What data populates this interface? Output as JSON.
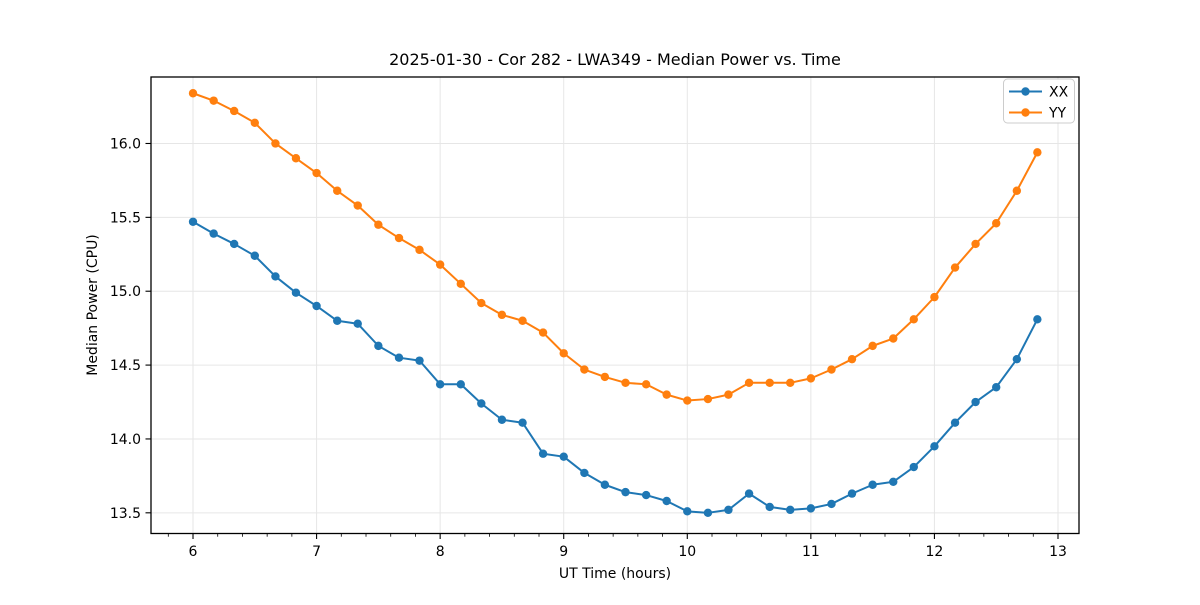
{
  "title": "2025-01-30 - Cor 282 - LWA349 - Median Power vs. Time",
  "chart_data": {
    "type": "line",
    "title": "2025-01-30 - Cor 282 - LWA349 - Median Power vs. Time",
    "xlabel": "UT Time (hours)",
    "ylabel": "Median Power (CPU)",
    "xlim": [
      5.66,
      13.17
    ],
    "ylim": [
      13.36,
      16.45
    ],
    "x_ticks": [
      6,
      7,
      8,
      9,
      10,
      11,
      12,
      13
    ],
    "y_ticks": [
      13.5,
      14.0,
      14.5,
      15.0,
      15.5,
      16.0
    ],
    "x_minor_tick_step": 0.2,
    "grid": true,
    "legend_position": "upper-right",
    "x": [
      6.0,
      6.167,
      6.333,
      6.5,
      6.667,
      6.833,
      7.0,
      7.167,
      7.333,
      7.5,
      7.667,
      7.833,
      8.0,
      8.167,
      8.333,
      8.5,
      8.667,
      8.833,
      9.0,
      9.167,
      9.333,
      9.5,
      9.667,
      9.833,
      10.0,
      10.167,
      10.333,
      10.5,
      10.667,
      10.833,
      11.0,
      11.167,
      11.333,
      11.5,
      11.667,
      11.833,
      12.0,
      12.167,
      12.333,
      12.5,
      12.667,
      12.833
    ],
    "series": [
      {
        "name": "XX",
        "color": "#1f77b4",
        "values": [
          15.47,
          15.39,
          15.32,
          15.24,
          15.1,
          14.99,
          14.9,
          14.8,
          14.78,
          14.63,
          14.55,
          14.53,
          14.37,
          14.37,
          14.24,
          14.13,
          14.11,
          13.9,
          13.88,
          13.77,
          13.69,
          13.64,
          13.62,
          13.58,
          13.51,
          13.5,
          13.52,
          13.63,
          13.54,
          13.52,
          13.53,
          13.56,
          13.63,
          13.69,
          13.71,
          13.81,
          13.95,
          14.11,
          14.25,
          14.35,
          14.54,
          14.81
        ]
      },
      {
        "name": "YY",
        "color": "#ff7f0e",
        "values": [
          16.34,
          16.29,
          16.22,
          16.14,
          16.0,
          15.9,
          15.8,
          15.68,
          15.58,
          15.45,
          15.36,
          15.28,
          15.18,
          15.05,
          14.92,
          14.84,
          14.8,
          14.72,
          14.58,
          14.47,
          14.42,
          14.38,
          14.37,
          14.3,
          14.26,
          14.27,
          14.3,
          14.38,
          14.38,
          14.38,
          14.41,
          14.47,
          14.54,
          14.63,
          14.68,
          14.81,
          14.96,
          15.16,
          15.32,
          15.46,
          15.68,
          15.94
        ]
      }
    ]
  }
}
